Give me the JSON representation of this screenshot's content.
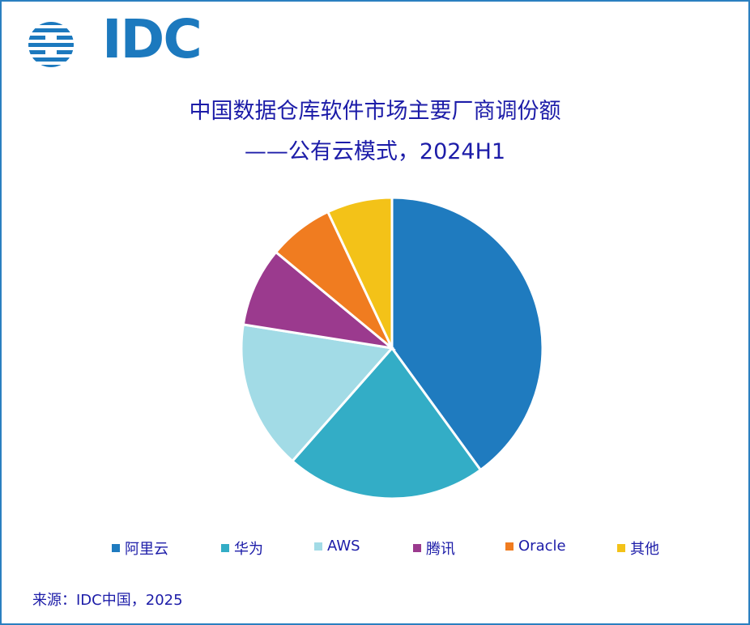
{
  "logo": {
    "text": "IDC",
    "color": "#1c79be"
  },
  "chart_data": {
    "type": "pie",
    "title": "中国数据仓库软件市场主要厂商调份额",
    "subtitle": "——公有云模式，2024H1",
    "categories": [
      "阿里云",
      "华为",
      "AWS",
      "腾讯",
      "Oracle",
      "其他"
    ],
    "values": [
      40.0,
      21.5,
      16.0,
      8.5,
      7.0,
      7.0
    ],
    "unit": "%",
    "colors": [
      "#1f7bbf",
      "#33adc6",
      "#a2dbe6",
      "#9b3a8e",
      "#f07c20",
      "#f3c218"
    ],
    "legend_position": "bottom",
    "start": "12 o'clock, clockwise"
  },
  "source": "来源：IDC中国，2025"
}
